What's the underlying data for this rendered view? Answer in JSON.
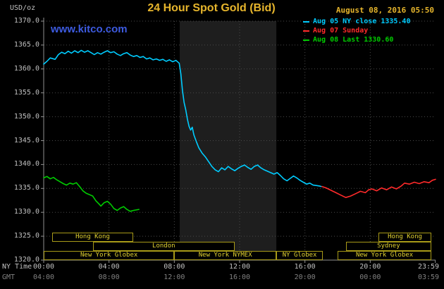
{
  "colors": {
    "background": "#000000",
    "gold": "#e6b52c",
    "watermark_blue": "#3d5be0",
    "axis": "#909090",
    "grid": "#4a4a4a",
    "tick_text": "#c0c0c0",
    "gmt_text": "#808080",
    "band": "#1e1e1e",
    "session_border": "#a89a18",
    "session_text": "#e2d232",
    "cyan": "#00ccff",
    "red": "#ff2a2a",
    "green": "#00cc00"
  },
  "header": {
    "unit_label": "USD/oz",
    "title": "24 Hour Spot Gold (Bid)",
    "datetime": "August 08, 2016 05:50",
    "watermark": "www.kitco.com"
  },
  "legend": [
    {
      "label": "Aug 05 NY close 1335.40",
      "color_key": "cyan"
    },
    {
      "label": "Aug 07 Sunday",
      "color_key": "red"
    },
    {
      "label": "Aug 08 Last 1330.60",
      "color_key": "green"
    }
  ],
  "axes": {
    "ny_label": "NY Time",
    "gmt_label": "GMT",
    "y_tick_labels": [
      "1370.0",
      "1365.0",
      "1360.0",
      "1355.0",
      "1350.0",
      "1345.0",
      "1340.0",
      "1335.0",
      "1330.0",
      "1325.0",
      "1320.0"
    ],
    "x_tick_hours": [
      0,
      4,
      8,
      12,
      16,
      20,
      23.983
    ],
    "x_tick_labels_ny": [
      "00:00",
      "04:00",
      "08:00",
      "12:00",
      "16:00",
      "20:00",
      "23:59"
    ],
    "x_tick_labels_gmt": [
      "04:00",
      "08:00",
      "12:00",
      "16:00",
      "20:00",
      "00:00",
      "03:59"
    ]
  },
  "sessions": [
    {
      "row": 0,
      "label": "Hong Kong",
      "start": 0.5,
      "end": 5.5
    },
    {
      "row": 0,
      "label": "Hong Kong",
      "start": 20.5,
      "end": 23.75
    },
    {
      "row": 1,
      "label": "London",
      "start": 3.0,
      "end": 11.7
    },
    {
      "row": 1,
      "label": "Sydney",
      "start": 18.5,
      "end": 23.75
    },
    {
      "row": 2,
      "label": "New York Globex",
      "start": 0.0,
      "end": 8.0
    },
    {
      "row": 2,
      "label": "New York NYMEX",
      "start": 8.0,
      "end": 14.25
    },
    {
      "row": 2,
      "label": "NY Globex",
      "start": 14.25,
      "end": 17.1
    },
    {
      "row": 2,
      "label": "New York Globex",
      "start": 18.0,
      "end": 23.75
    }
  ],
  "chart_data": {
    "type": "line",
    "title": "24 Hour Spot Gold (Bid)",
    "xlabel": "NY Time (hours)",
    "ylabel": "USD/oz",
    "x_range": [
      0,
      24
    ],
    "y_range": [
      1320,
      1370
    ],
    "grid": "dotted",
    "legend_position": "top-right",
    "shaded_band_hours": [
      8.33,
      14.25
    ],
    "series": [
      {
        "name": "Aug 05 NY close 1335.40",
        "color_key": "cyan",
        "points": [
          [
            0,
            1361.0
          ],
          [
            0.2,
            1361.6
          ],
          [
            0.4,
            1362.3
          ],
          [
            0.7,
            1362.0
          ],
          [
            0.9,
            1363.0
          ],
          [
            1.1,
            1363.5
          ],
          [
            1.3,
            1363.2
          ],
          [
            1.5,
            1363.7
          ],
          [
            1.7,
            1363.3
          ],
          [
            1.9,
            1363.8
          ],
          [
            2.1,
            1363.4
          ],
          [
            2.3,
            1363.9
          ],
          [
            2.5,
            1363.5
          ],
          [
            2.7,
            1363.8
          ],
          [
            2.9,
            1363.4
          ],
          [
            3.1,
            1363.0
          ],
          [
            3.3,
            1363.4
          ],
          [
            3.5,
            1363.1
          ],
          [
            3.7,
            1363.5
          ],
          [
            3.9,
            1363.8
          ],
          [
            4.1,
            1363.4
          ],
          [
            4.3,
            1363.6
          ],
          [
            4.5,
            1363.1
          ],
          [
            4.7,
            1362.8
          ],
          [
            4.9,
            1363.2
          ],
          [
            5.1,
            1363.4
          ],
          [
            5.3,
            1362.9
          ],
          [
            5.5,
            1362.6
          ],
          [
            5.7,
            1362.8
          ],
          [
            5.9,
            1362.4
          ],
          [
            6.1,
            1362.6
          ],
          [
            6.3,
            1362.1
          ],
          [
            6.5,
            1362.3
          ],
          [
            6.7,
            1361.9
          ],
          [
            6.9,
            1362.1
          ],
          [
            7.1,
            1361.8
          ],
          [
            7.3,
            1362.0
          ],
          [
            7.5,
            1361.6
          ],
          [
            7.7,
            1361.9
          ],
          [
            7.9,
            1361.5
          ],
          [
            8.1,
            1361.8
          ],
          [
            8.3,
            1361.2
          ],
          [
            8.4,
            1359.0
          ],
          [
            8.5,
            1355.5
          ],
          [
            8.6,
            1353.0
          ],
          [
            8.7,
            1351.5
          ],
          [
            8.8,
            1349.5
          ],
          [
            8.9,
            1348.0
          ],
          [
            9.0,
            1347.2
          ],
          [
            9.1,
            1347.8
          ],
          [
            9.2,
            1346.2
          ],
          [
            9.35,
            1344.8
          ],
          [
            9.5,
            1343.5
          ],
          [
            9.7,
            1342.4
          ],
          [
            9.9,
            1341.6
          ],
          [
            10.1,
            1340.6
          ],
          [
            10.3,
            1339.6
          ],
          [
            10.5,
            1338.9
          ],
          [
            10.7,
            1338.5
          ],
          [
            10.9,
            1339.3
          ],
          [
            11.1,
            1338.9
          ],
          [
            11.3,
            1339.6
          ],
          [
            11.5,
            1339.1
          ],
          [
            11.7,
            1338.7
          ],
          [
            11.9,
            1339.2
          ],
          [
            12.1,
            1339.6
          ],
          [
            12.3,
            1339.9
          ],
          [
            12.5,
            1339.4
          ],
          [
            12.7,
            1339.0
          ],
          [
            12.9,
            1339.6
          ],
          [
            13.1,
            1339.9
          ],
          [
            13.3,
            1339.3
          ],
          [
            13.5,
            1338.9
          ],
          [
            13.7,
            1338.6
          ],
          [
            13.9,
            1338.3
          ],
          [
            14.1,
            1338.0
          ],
          [
            14.3,
            1338.3
          ],
          [
            14.5,
            1337.7
          ],
          [
            14.7,
            1337.0
          ],
          [
            14.9,
            1336.6
          ],
          [
            15.1,
            1337.1
          ],
          [
            15.3,
            1337.6
          ],
          [
            15.5,
            1337.2
          ],
          [
            15.7,
            1336.7
          ],
          [
            15.9,
            1336.3
          ],
          [
            16.1,
            1335.9
          ],
          [
            16.3,
            1336.1
          ],
          [
            16.5,
            1335.7
          ],
          [
            16.7,
            1335.6
          ],
          [
            16.9,
            1335.5
          ],
          [
            17.0,
            1335.4
          ]
        ]
      },
      {
        "name": "Aug 07 Sunday",
        "color_key": "red",
        "points": [
          [
            17.05,
            1335.4
          ],
          [
            17.3,
            1335.1
          ],
          [
            17.6,
            1334.6
          ],
          [
            17.9,
            1334.1
          ],
          [
            18.2,
            1333.6
          ],
          [
            18.5,
            1333.1
          ],
          [
            18.8,
            1333.4
          ],
          [
            19.1,
            1333.9
          ],
          [
            19.4,
            1334.4
          ],
          [
            19.7,
            1334.1
          ],
          [
            19.9,
            1334.7
          ],
          [
            20.1,
            1334.9
          ],
          [
            20.4,
            1334.5
          ],
          [
            20.7,
            1335.1
          ],
          [
            21.0,
            1334.7
          ],
          [
            21.3,
            1335.3
          ],
          [
            21.6,
            1334.9
          ],
          [
            21.9,
            1335.5
          ],
          [
            22.1,
            1336.1
          ],
          [
            22.4,
            1335.9
          ],
          [
            22.7,
            1336.3
          ],
          [
            23.0,
            1336.0
          ],
          [
            23.3,
            1336.4
          ],
          [
            23.6,
            1336.2
          ],
          [
            23.8,
            1336.7
          ],
          [
            24,
            1336.9
          ]
        ]
      },
      {
        "name": "Aug 08 Last 1330.60",
        "color_key": "green",
        "points": [
          [
            0,
            1337.2
          ],
          [
            0.2,
            1337.5
          ],
          [
            0.4,
            1337.0
          ],
          [
            0.6,
            1337.3
          ],
          [
            0.8,
            1336.8
          ],
          [
            1.0,
            1336.4
          ],
          [
            1.2,
            1336.0
          ],
          [
            1.4,
            1335.7
          ],
          [
            1.6,
            1336.1
          ],
          [
            1.8,
            1335.9
          ],
          [
            2.0,
            1336.2
          ],
          [
            2.2,
            1335.4
          ],
          [
            2.4,
            1334.5
          ],
          [
            2.6,
            1334.0
          ],
          [
            2.8,
            1333.7
          ],
          [
            3.0,
            1333.4
          ],
          [
            3.2,
            1332.4
          ],
          [
            3.4,
            1331.7
          ],
          [
            3.5,
            1331.3
          ],
          [
            3.7,
            1332.0
          ],
          [
            3.9,
            1332.3
          ],
          [
            4.1,
            1331.7
          ],
          [
            4.3,
            1330.8
          ],
          [
            4.5,
            1330.4
          ],
          [
            4.7,
            1330.9
          ],
          [
            4.9,
            1331.2
          ],
          [
            5.1,
            1330.6
          ],
          [
            5.3,
            1330.2
          ],
          [
            5.5,
            1330.4
          ],
          [
            5.83,
            1330.6
          ]
        ]
      }
    ]
  }
}
